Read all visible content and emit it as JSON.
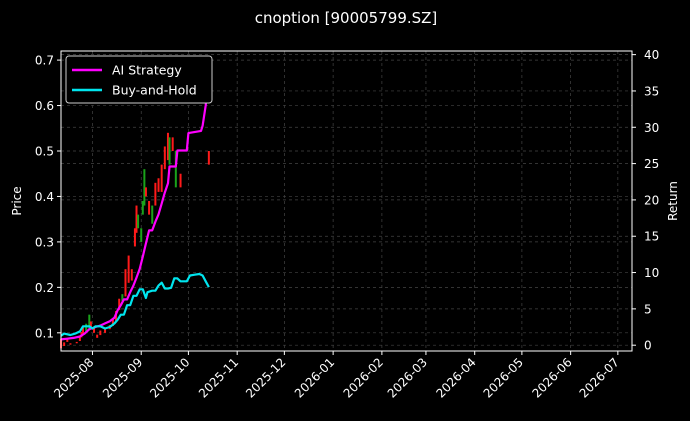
{
  "chart_data": {
    "type": "line",
    "title": "cnoption [90005799.SZ]",
    "ylabel_left": "Price",
    "ylabel_right": "Return",
    "grid": true,
    "legend_position": "top-left",
    "left_ylim": [
      0.06,
      0.72
    ],
    "right_ylim": [
      -0.8,
      40.5
    ],
    "xlim": [
      "2025-07-12",
      "2026-07-10"
    ],
    "left_ticks": [
      "0.1",
      "0.2",
      "0.3",
      "0.4",
      "0.5",
      "0.6",
      "0.7"
    ],
    "right_ticks": [
      "0",
      "5",
      "10",
      "15",
      "20",
      "25",
      "30",
      "35",
      "40"
    ],
    "x_ticks": [
      "2025-08",
      "2025-09",
      "2025-10",
      "2025-11",
      "2025-12",
      "2026-01",
      "2026-02",
      "2026-03",
      "2026-04",
      "2026-05",
      "2026-06",
      "2026-07"
    ],
    "colors": {
      "up": "#ff1a1a",
      "down": "#1aa31a",
      "ai": "#ff00ff",
      "bh": "#00e5ee",
      "grid": "#444444",
      "background": "#000000"
    },
    "series": [
      {
        "name": "AI Strategy",
        "color": "#ff00ff",
        "points": [
          [
            "2025-07-12",
            0.8
          ],
          [
            "2025-07-16",
            0.9
          ],
          [
            "2025-07-20",
            1.0
          ],
          [
            "2025-07-24",
            1.2
          ],
          [
            "2025-07-27",
            1.6
          ],
          [
            "2025-07-30",
            2.2
          ],
          [
            "2025-08-03",
            2.5
          ],
          [
            "2025-08-06",
            2.7
          ],
          [
            "2025-08-09",
            3.0
          ],
          [
            "2025-08-12",
            3.3
          ],
          [
            "2025-08-15",
            3.8
          ],
          [
            "2025-08-17",
            4.8
          ],
          [
            "2025-08-19",
            5.5
          ],
          [
            "2025-08-21",
            6.3
          ],
          [
            "2025-08-23",
            6.3
          ],
          [
            "2025-08-25",
            7.3
          ],
          [
            "2025-08-27",
            8.2
          ],
          [
            "2025-08-29",
            9.3
          ],
          [
            "2025-08-31",
            10.5
          ],
          [
            "2025-09-02",
            12.2
          ],
          [
            "2025-09-04",
            14.0
          ],
          [
            "2025-09-06",
            15.8
          ],
          [
            "2025-09-08",
            15.8
          ],
          [
            "2025-09-10",
            17.0
          ],
          [
            "2025-09-12",
            18.0
          ],
          [
            "2025-09-14",
            19.5
          ],
          [
            "2025-09-16",
            21.0
          ],
          [
            "2025-09-18",
            22.3
          ],
          [
            "2025-09-19",
            24.6
          ],
          [
            "2025-09-23",
            24.6
          ],
          [
            "2025-09-24",
            26.8
          ],
          [
            "2025-09-30",
            26.8
          ],
          [
            "2025-10-01",
            29.2
          ],
          [
            "2025-10-09",
            29.5
          ],
          [
            "2025-10-10",
            30.2
          ],
          [
            "2025-10-12",
            33.0
          ],
          [
            "2025-10-14",
            37.5
          ]
        ]
      },
      {
        "name": "Buy-and-Hold",
        "color": "#00e5ee",
        "points": [
          [
            "2025-07-12",
            1.3
          ],
          [
            "2025-07-14",
            1.6
          ],
          [
            "2025-07-16",
            1.5
          ],
          [
            "2025-07-18",
            1.4
          ],
          [
            "2025-07-21",
            1.6
          ],
          [
            "2025-07-24",
            1.9
          ],
          [
            "2025-07-26",
            2.6
          ],
          [
            "2025-07-30",
            2.6
          ],
          [
            "2025-08-01",
            2.3
          ],
          [
            "2025-08-03",
            2.6
          ],
          [
            "2025-08-06",
            2.6
          ],
          [
            "2025-08-09",
            2.3
          ],
          [
            "2025-08-12",
            2.5
          ],
          [
            "2025-08-15",
            3.0
          ],
          [
            "2025-08-17",
            3.5
          ],
          [
            "2025-08-19",
            4.2
          ],
          [
            "2025-08-21",
            4.2
          ],
          [
            "2025-08-23",
            5.5
          ],
          [
            "2025-08-25",
            5.5
          ],
          [
            "2025-08-27",
            6.8
          ],
          [
            "2025-08-29",
            6.8
          ],
          [
            "2025-08-31",
            7.7
          ],
          [
            "2025-09-02",
            7.7
          ],
          [
            "2025-09-04",
            6.5
          ],
          [
            "2025-09-05",
            7.3
          ],
          [
            "2025-09-08",
            7.5
          ],
          [
            "2025-09-10",
            7.5
          ],
          [
            "2025-09-12",
            8.2
          ],
          [
            "2025-09-14",
            8.6
          ],
          [
            "2025-09-16",
            7.8
          ],
          [
            "2025-09-18",
            7.8
          ],
          [
            "2025-09-20",
            7.9
          ],
          [
            "2025-09-22",
            9.2
          ],
          [
            "2025-09-24",
            9.2
          ],
          [
            "2025-09-26",
            8.8
          ],
          [
            "2025-09-30",
            8.8
          ],
          [
            "2025-10-02",
            9.6
          ],
          [
            "2025-10-05",
            9.7
          ],
          [
            "2025-10-08",
            9.8
          ],
          [
            "2025-10-10",
            9.6
          ],
          [
            "2025-10-12",
            8.8
          ],
          [
            "2025-10-14",
            8.0
          ]
        ]
      }
    ],
    "candles": [
      [
        "2025-07-12",
        0.066,
        0.087,
        "up"
      ],
      [
        "2025-07-14",
        0.071,
        0.079,
        "up"
      ],
      [
        "2025-07-16",
        0.08,
        0.087,
        "up"
      ],
      [
        "2025-07-18",
        0.074,
        0.077,
        "up"
      ],
      [
        "2025-07-22",
        0.077,
        0.08,
        "up"
      ],
      [
        "2025-07-24",
        0.082,
        0.092,
        "up"
      ],
      [
        "2025-07-25",
        0.09,
        0.102,
        "up"
      ],
      [
        "2025-07-26",
        0.098,
        0.112,
        "up"
      ],
      [
        "2025-07-28",
        0.103,
        0.12,
        "down"
      ],
      [
        "2025-07-30",
        0.11,
        0.14,
        "down"
      ],
      [
        "2025-07-31",
        0.112,
        0.125,
        "up"
      ],
      [
        "2025-08-02",
        0.1,
        0.11,
        "up"
      ],
      [
        "2025-08-04",
        0.089,
        0.096,
        "up"
      ],
      [
        "2025-08-06",
        0.095,
        0.105,
        "up"
      ],
      [
        "2025-08-09",
        0.1,
        0.108,
        "up"
      ],
      [
        "2025-08-12",
        0.108,
        0.117,
        "up"
      ],
      [
        "2025-08-14",
        0.115,
        0.132,
        "up"
      ],
      [
        "2025-08-16",
        0.125,
        0.148,
        "up"
      ],
      [
        "2025-08-18",
        0.15,
        0.175,
        "up"
      ],
      [
        "2025-08-20",
        0.17,
        0.185,
        "down"
      ],
      [
        "2025-08-22",
        0.18,
        0.24,
        "up"
      ],
      [
        "2025-08-24",
        0.21,
        0.27,
        "up"
      ],
      [
        "2025-08-26",
        0.215,
        0.24,
        "up"
      ],
      [
        "2025-08-28",
        0.29,
        0.33,
        "up"
      ],
      [
        "2025-08-29",
        0.32,
        0.38,
        "up"
      ],
      [
        "2025-08-30",
        0.33,
        0.36,
        "down"
      ],
      [
        "2025-09-01",
        0.3,
        0.33,
        "down"
      ],
      [
        "2025-09-02",
        0.36,
        0.39,
        "down"
      ],
      [
        "2025-09-03",
        0.38,
        0.46,
        "down"
      ],
      [
        "2025-09-04",
        0.4,
        0.42,
        "up"
      ],
      [
        "2025-09-06",
        0.36,
        0.39,
        "up"
      ],
      [
        "2025-09-08",
        0.34,
        0.38,
        "down"
      ],
      [
        "2025-09-10",
        0.38,
        0.43,
        "up"
      ],
      [
        "2025-09-12",
        0.41,
        0.44,
        "up"
      ],
      [
        "2025-09-14",
        0.41,
        0.47,
        "up"
      ],
      [
        "2025-09-16",
        0.46,
        0.51,
        "up"
      ],
      [
        "2025-09-18",
        0.48,
        0.54,
        "up"
      ],
      [
        "2025-09-19",
        0.47,
        0.53,
        "down"
      ],
      [
        "2025-09-21",
        0.5,
        0.53,
        "up"
      ],
      [
        "2025-09-23",
        0.42,
        0.5,
        "down"
      ],
      [
        "2025-09-26",
        0.42,
        0.45,
        "up"
      ],
      [
        "2025-10-14",
        0.47,
        0.5,
        "up"
      ]
    ]
  }
}
